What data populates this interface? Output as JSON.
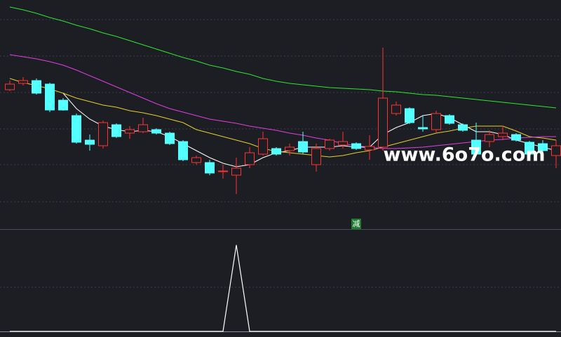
{
  "chart_data": [
    {
      "type": "candlestick",
      "ylim": [
        0,
        330
      ],
      "up_color": "#ff3232",
      "down_color": "#54ffff",
      "annotation": "减",
      "annotation_index": 26,
      "watermark": "www.6o7o.com",
      "open": [
        202,
        211,
        215,
        210,
        187,
        165,
        130,
        122,
        152,
        140,
        142,
        145,
        140,
        128,
        98,
        98,
        86,
        80,
        95,
        110,
        118,
        115,
        128,
        95,
        118,
        123,
        125,
        116,
        120,
        168,
        175,
        148,
        145,
        165,
        152,
        130,
        128,
        135,
        138,
        127,
        125,
        108
      ],
      "high": [
        215,
        220,
        218,
        212,
        190,
        168,
        138,
        158,
        154,
        150,
        162,
        147,
        142,
        130,
        108,
        102,
        95,
        105,
        120,
        142,
        120,
        125,
        142,
        125,
        132,
        142,
        127,
        137,
        262,
        185,
        177,
        165,
        172,
        167,
        154,
        155,
        144,
        150,
        140,
        129,
        130,
        130
      ],
      "low": [
        200,
        208,
        195,
        170,
        172,
        125,
        115,
        118,
        133,
        132,
        140,
        138,
        123,
        100,
        95,
        80,
        75,
        53,
        90,
        108,
        108,
        108,
        110,
        85,
        115,
        118,
        116,
        102,
        115,
        165,
        153,
        142,
        140,
        152,
        142,
        108,
        120,
        130,
        128,
        108,
        108,
        90
      ],
      "close": [
        210,
        215,
        197,
        173,
        173,
        127,
        124,
        155,
        135,
        145,
        152,
        140,
        125,
        102,
        105,
        83,
        86,
        90,
        112,
        132,
        110,
        120,
        113,
        118,
        130,
        128,
        118,
        121,
        190,
        180,
        155,
        146,
        168,
        154,
        144,
        110,
        138,
        140,
        130,
        110,
        115,
        122
      ],
      "series": [
        {
          "color": "#ffffff",
          "start": 4,
          "values": [
            197,
            175,
            160,
            150,
            145,
            142,
            144,
            142,
            135,
            125,
            115,
            105,
            97,
            92,
            95,
            105,
            112,
            115,
            120,
            120,
            120,
            122,
            120,
            120,
            138,
            148,
            155,
            165,
            168,
            162,
            152,
            142,
            142,
            138,
            130,
            125,
            120,
            115
          ]
        },
        {
          "color": "#e6d02a",
          "start": 0,
          "values": [
            218,
            212,
            208,
            203,
            197,
            190,
            185,
            180,
            177,
            172,
            169,
            165,
            160,
            155,
            145,
            140,
            135,
            130,
            125,
            118,
            114,
            112,
            110,
            108,
            106,
            108,
            112,
            115,
            120,
            125,
            130,
            135,
            140,
            143,
            147,
            150,
            150,
            150,
            143,
            135,
            133,
            130
          ]
        },
        {
          "color": "#e23ee2",
          "start": 0,
          "values": [
            252,
            249,
            246,
            242,
            237,
            230,
            222,
            214,
            206,
            198,
            190,
            182,
            175,
            170,
            165,
            160,
            157,
            154,
            150,
            147,
            144,
            140,
            137,
            133,
            130,
            125,
            122,
            120,
            118,
            118,
            119,
            120,
            122,
            124,
            126,
            128,
            130,
            131,
            133,
            134,
            135,
            135
          ]
        },
        {
          "color": "#2ee82e",
          "start": 0,
          "values": [
            320,
            316,
            311,
            305,
            300,
            294,
            289,
            283,
            278,
            272,
            266,
            260,
            254,
            248,
            243,
            237,
            233,
            228,
            224,
            218,
            214,
            211,
            209,
            207,
            205,
            204,
            203,
            202,
            200,
            199,
            197,
            195,
            194,
            192,
            190,
            188,
            186,
            184,
            182,
            180,
            178,
            176
          ]
        }
      ]
    },
    {
      "type": "line",
      "ylim": [
        0,
        1.16
      ],
      "series": [
        {
          "color": "#ffffff",
          "values": [
            0,
            0,
            0,
            0,
            0,
            0,
            0,
            0,
            0,
            0,
            0,
            0,
            0,
            0,
            0,
            0,
            0,
            1,
            0,
            0,
            0,
            0,
            0,
            0,
            0,
            0,
            0,
            0,
            0,
            0,
            0,
            0,
            0,
            0,
            0,
            0,
            0,
            0,
            0,
            0,
            0,
            0
          ]
        }
      ]
    }
  ]
}
